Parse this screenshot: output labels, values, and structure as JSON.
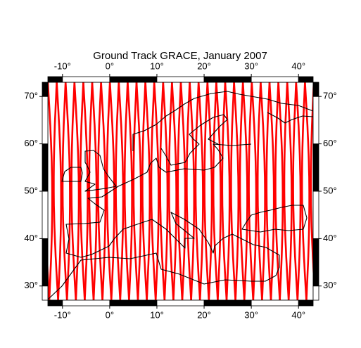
{
  "chart_data": {
    "type": "map",
    "title": "Ground Track GRACE, January 2007",
    "xlim": [
      -13.1,
      43.1
    ],
    "ylim": [
      27,
      73
    ],
    "xticks": [
      {
        "value": -10,
        "label": "-10°"
      },
      {
        "value": 0,
        "label": "0°"
      },
      {
        "value": 10,
        "label": "10°"
      },
      {
        "value": 20,
        "label": "20°"
      },
      {
        "value": 30,
        "label": "30°"
      },
      {
        "value": 40,
        "label": "40°"
      }
    ],
    "yticks": [
      {
        "value": 30,
        "label": "30°"
      },
      {
        "value": 40,
        "label": "40°"
      },
      {
        "value": 50,
        "label": "50°"
      },
      {
        "value": 60,
        "label": "60°"
      },
      {
        "value": 70,
        "label": "70°"
      }
    ],
    "track_color": "#ff0000"
  }
}
